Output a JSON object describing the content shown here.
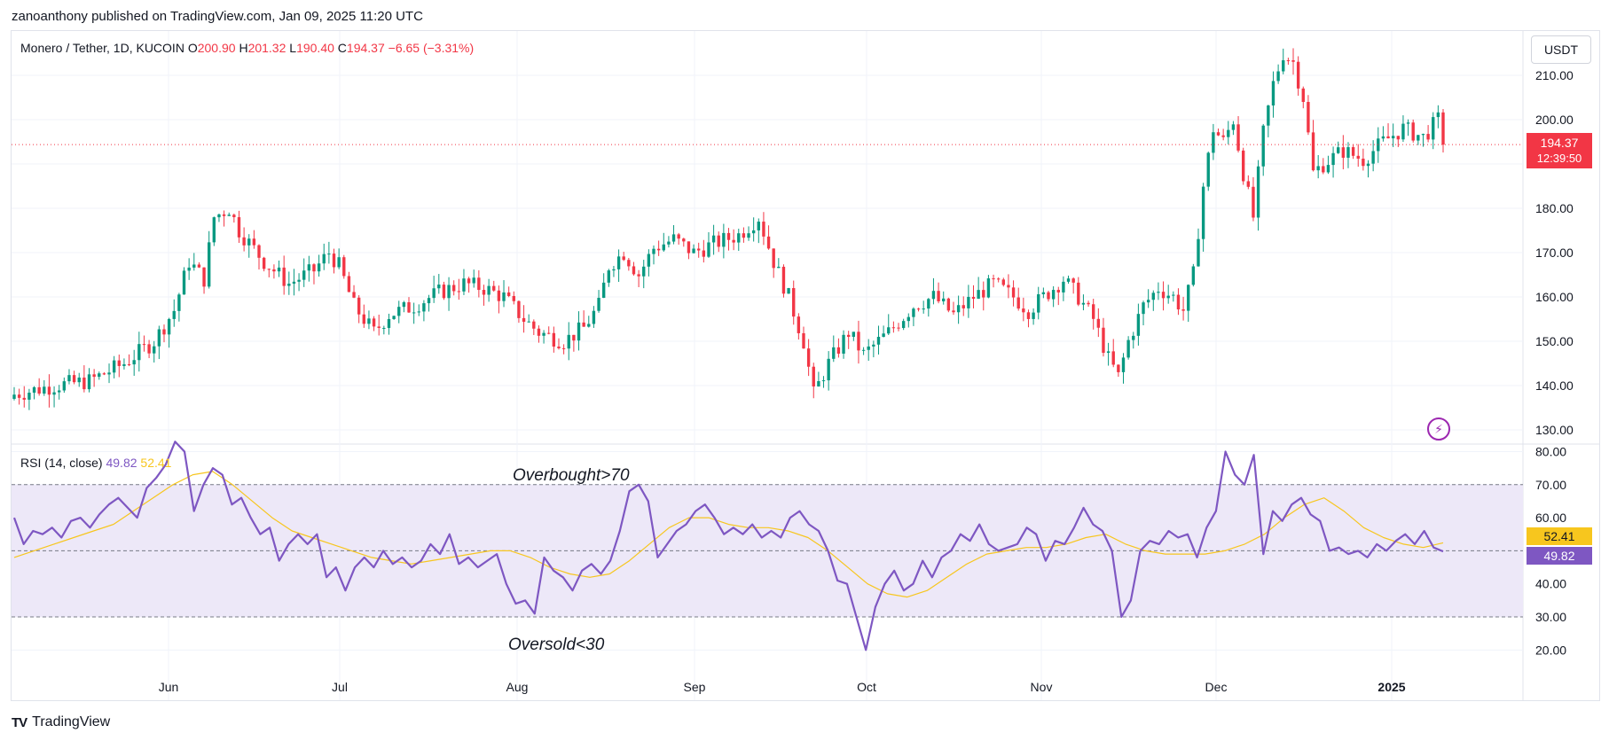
{
  "header": {
    "published_by": "zanoanthony published on TradingView.com, Jan 09, 2025 11:20 UTC"
  },
  "legend": {
    "symbol": "Monero / Tether, 1D, KUCOIN",
    "open_label": "O",
    "open": "200.90",
    "high_label": "H",
    "high": "201.32",
    "low_label": "L",
    "low": "190.40",
    "close_label": "C",
    "close": "194.37",
    "change": "−6.65 (−3.31%)"
  },
  "rsi_legend": {
    "label": "RSI (14, close)",
    "rsi_value": "49.82",
    "ma_value": "52.41"
  },
  "price_axis": {
    "currency": "USDT",
    "ticks": [
      "210.00",
      "200.00",
      "190.00",
      "180.00",
      "170.00",
      "160.00",
      "150.00",
      "140.00",
      "130.00"
    ]
  },
  "rsi_axis": {
    "ticks": [
      "80.00",
      "70.00",
      "60.00",
      "50.00",
      "40.00",
      "30.00",
      "20.00"
    ]
  },
  "last_price": {
    "value": "194.37",
    "countdown": "12:39:50"
  },
  "rsi_tags": {
    "ma": "52.41",
    "rsi": "49.82"
  },
  "annotations": {
    "overbought": "Overbought>70",
    "oversold": "Oversold<30"
  },
  "footer": {
    "brand": "TradingView"
  },
  "colors": {
    "up": "#089981",
    "down": "#f23645",
    "rsi_line": "#7e57c2",
    "rsi_ma": "#f7c61e",
    "band_fill": "#ede8f8",
    "grid": "#f0f3fa"
  },
  "icons": {
    "lightning": "lightning-icon",
    "logo": "tradingview-logo-icon"
  },
  "chart_data": [
    {
      "type": "candlestick",
      "title": "Monero / Tether, 1D, KUCOIN",
      "x_ticks": [
        "Jun",
        "Jul",
        "Aug",
        "Sep",
        "Oct",
        "Nov",
        "Dec",
        "2025"
      ],
      "ylim": [
        127,
        220
      ],
      "last_close": 194.37,
      "price_points": [
        [
          0,
          138
        ],
        [
          8,
          140
        ],
        [
          15,
          141
        ],
        [
          22,
          145
        ],
        [
          28,
          150
        ],
        [
          32,
          157
        ],
        [
          35,
          168
        ],
        [
          38,
          164
        ],
        [
          40,
          178
        ],
        [
          43,
          180
        ],
        [
          45,
          175
        ],
        [
          50,
          168
        ],
        [
          55,
          163
        ],
        [
          60,
          166
        ],
        [
          63,
          170
        ],
        [
          65,
          167
        ],
        [
          68,
          158
        ],
        [
          72,
          152
        ],
        [
          75,
          156
        ],
        [
          80,
          158
        ],
        [
          85,
          161
        ],
        [
          90,
          163
        ],
        [
          94,
          162
        ],
        [
          98,
          160
        ],
        [
          102,
          155
        ],
        [
          105,
          152
        ],
        [
          110,
          150
        ],
        [
          114,
          153
        ],
        [
          117,
          158
        ],
        [
          119,
          167
        ],
        [
          122,
          170
        ],
        [
          125,
          165
        ],
        [
          128,
          171
        ],
        [
          132,
          173
        ],
        [
          136,
          170
        ],
        [
          140,
          172
        ],
        [
          145,
          174
        ],
        [
          149,
          178
        ],
        [
          152,
          168
        ],
        [
          155,
          160
        ],
        [
          158,
          150
        ],
        [
          160,
          138
        ],
        [
          163,
          145
        ],
        [
          167,
          152
        ],
        [
          170,
          147
        ],
        [
          175,
          152
        ],
        [
          180,
          158
        ],
        [
          184,
          160
        ],
        [
          188,
          156
        ],
        [
          192,
          160
        ],
        [
          196,
          163
        ],
        [
          200,
          160
        ],
        [
          203,
          157
        ],
        [
          206,
          160
        ],
        [
          210,
          164
        ],
        [
          213,
          160
        ],
        [
          216,
          155
        ],
        [
          219,
          146
        ],
        [
          221,
          142
        ],
        [
          223,
          150
        ],
        [
          226,
          158
        ],
        [
          229,
          162
        ],
        [
          232,
          160
        ],
        [
          234,
          157
        ],
        [
          236,
          165
        ],
        [
          238,
          185
        ],
        [
          240,
          198
        ],
        [
          242,
          195
        ],
        [
          244,
          200
        ],
        [
          246,
          188
        ],
        [
          248,
          178
        ],
        [
          250,
          197
        ],
        [
          252,
          208
        ],
        [
          254,
          215
        ],
        [
          256,
          213
        ],
        [
          258,
          205
        ],
        [
          260,
          188
        ],
        [
          262,
          190
        ],
        [
          266,
          193
        ],
        [
          270,
          191
        ],
        [
          274,
          195
        ],
        [
          278,
          198
        ],
        [
          282,
          196
        ],
        [
          285,
          200
        ],
        [
          286,
          194.37
        ]
      ]
    },
    {
      "type": "line",
      "title": "RSI (14, close)",
      "ylim": [
        15,
        82
      ],
      "overbought": 70,
      "oversold": 30,
      "midline": 50,
      "series": [
        {
          "name": "RSI (14, close)",
          "values": [
            60,
            52,
            56,
            55,
            57,
            54,
            59,
            60,
            57,
            61,
            64,
            66,
            63,
            60,
            69,
            72,
            76,
            83,
            80,
            62,
            70,
            75,
            73,
            64,
            66,
            60,
            55,
            57,
            47,
            52,
            55,
            52,
            55,
            42,
            45,
            38,
            45,
            48,
            45,
            50,
            46,
            48,
            45,
            47,
            52,
            49,
            55,
            46,
            48,
            45,
            47,
            49,
            40,
            34,
            35,
            31,
            48,
            44,
            42,
            38,
            44,
            46,
            43,
            47,
            56,
            68,
            70,
            65,
            48,
            52,
            56,
            58,
            62,
            64,
            60,
            55,
            57,
            55,
            58,
            54,
            56,
            54,
            60,
            62,
            58,
            56,
            50,
            41,
            40,
            30,
            20,
            33,
            40,
            44,
            38,
            40,
            47,
            42,
            48,
            50,
            55,
            53,
            58,
            52,
            50,
            51,
            52,
            57,
            55,
            47,
            53,
            52,
            57,
            63,
            58,
            56,
            50,
            30,
            35,
            50,
            53,
            52,
            56,
            54,
            55,
            48,
            57,
            62,
            80,
            73,
            70,
            79,
            49,
            62,
            59,
            64,
            66,
            61,
            59,
            50,
            51,
            49,
            50,
            48,
            52,
            50,
            53,
            55,
            52,
            56,
            51,
            49.82
          ]
        },
        {
          "name": "MA",
          "values": [
            48,
            50,
            52,
            54,
            56,
            58,
            62,
            66,
            70,
            73,
            74,
            70,
            65,
            60,
            56,
            54,
            52,
            50,
            48,
            47,
            46,
            47,
            48,
            49,
            50,
            50,
            48,
            45,
            43,
            42,
            43,
            47,
            52,
            57,
            60,
            60,
            58,
            57,
            57,
            56,
            54,
            50,
            45,
            40,
            37,
            36,
            38,
            42,
            46,
            49,
            50,
            51,
            51,
            52,
            54,
            55,
            52,
            50,
            49,
            49,
            49,
            50,
            52,
            55,
            60,
            64,
            66,
            62,
            57,
            54,
            52,
            51,
            52.41
          ]
        }
      ]
    }
  ]
}
